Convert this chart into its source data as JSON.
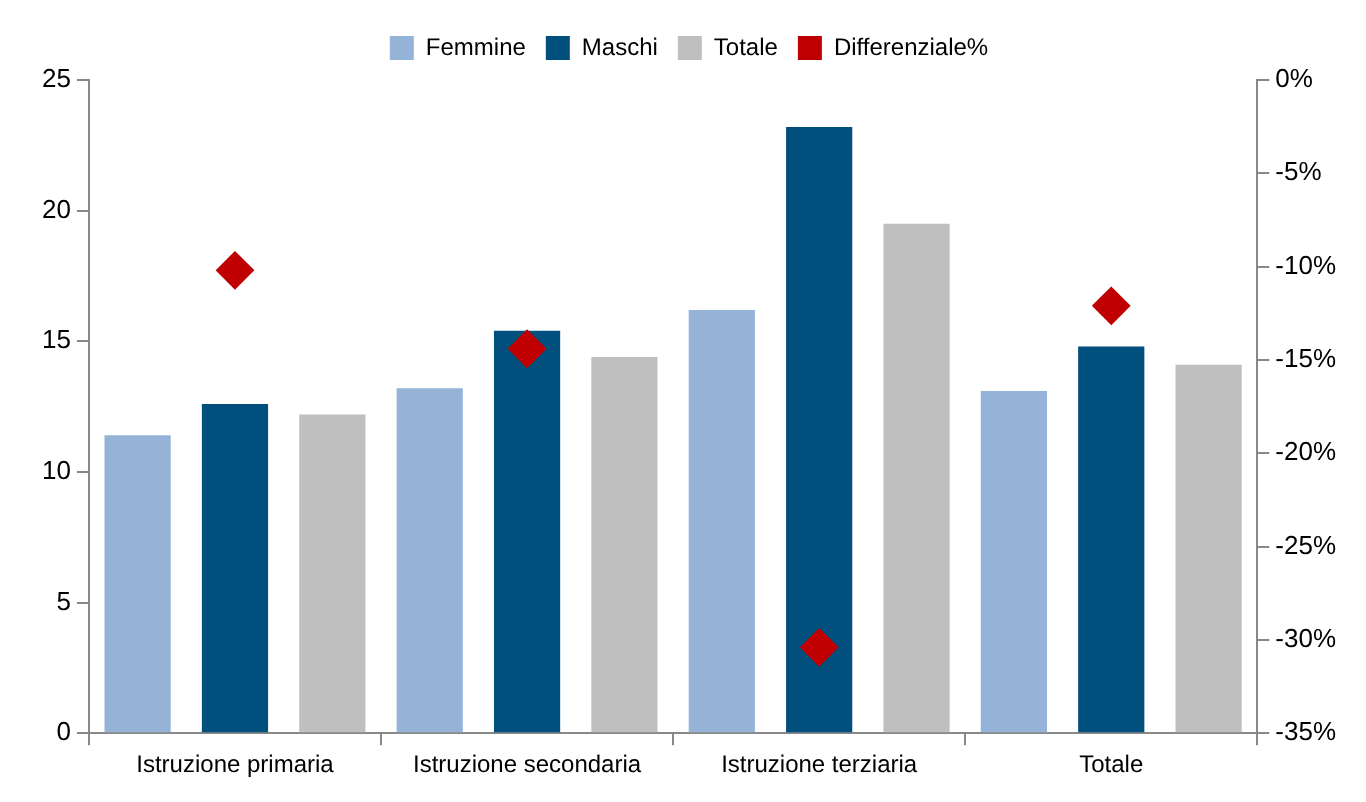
{
  "chart_data": {
    "type": "bar",
    "categories": [
      "Istruzione primaria",
      "Istruzione secondaria",
      "Istruzione terziaria",
      "Totale"
    ],
    "series": [
      {
        "name": "Femmine",
        "color": "#95b3d7",
        "values": [
          11.4,
          13.2,
          16.2,
          13.1
        ]
      },
      {
        "name": "Maschi",
        "color": "#004f7d",
        "values": [
          12.6,
          15.4,
          23.2,
          14.8
        ]
      },
      {
        "name": "Totale",
        "color": "#bfbfbf",
        "values": [
          12.2,
          14.4,
          19.5,
          14.1
        ]
      },
      {
        "name": "Differenziale%",
        "color": "#c00000",
        "type": "scatter",
        "axis": "y2",
        "values": [
          -10.2,
          -14.4,
          -30.4,
          -12.1
        ]
      }
    ],
    "ylim": [
      0,
      25
    ],
    "yticks": [
      0,
      5,
      10,
      15,
      20,
      25
    ],
    "y2lim": [
      -35,
      0
    ],
    "y2ticks": [
      {
        "value": 0,
        "label": "0%"
      },
      {
        "value": -5,
        "label": "-5%"
      },
      {
        "value": -10,
        "label": "-10%"
      },
      {
        "value": -15,
        "label": "-15%"
      },
      {
        "value": -20,
        "label": "-20%"
      },
      {
        "value": -25,
        "label": "-25%"
      },
      {
        "value": -30,
        "label": "-30%"
      },
      {
        "value": -35,
        "label": "-35%"
      }
    ],
    "grid": false,
    "legend": "top",
    "marker": "diamond"
  }
}
